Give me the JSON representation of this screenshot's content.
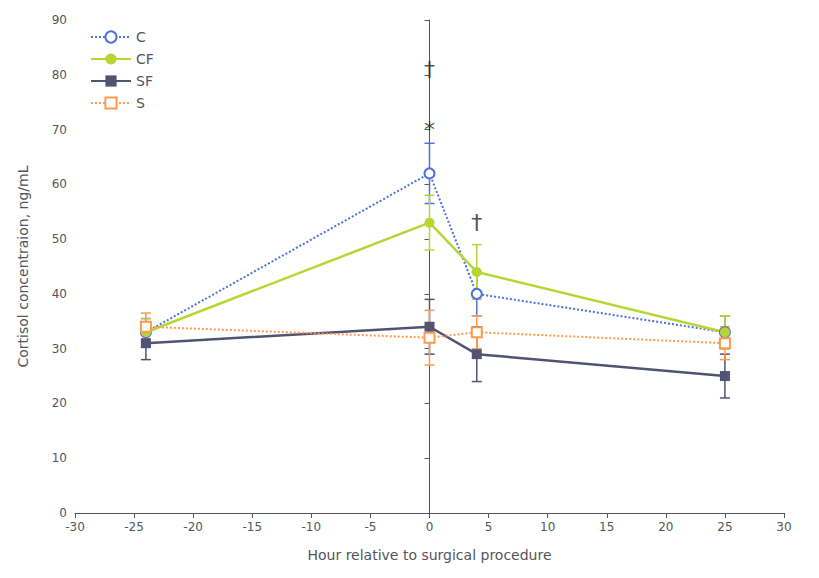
{
  "chart_data": {
    "type": "line",
    "xlabel": "Hour relative to surgical procedure",
    "ylabel": "Cortisol concentraion, ng/mL",
    "x": [
      -24,
      0,
      4,
      25
    ],
    "series": [
      {
        "name": "C",
        "values": [
          33,
          62,
          40,
          33
        ],
        "errors": [
          2.5,
          5.5,
          4,
          3
        ],
        "marker": "open_circle",
        "line_style": "dotted"
      },
      {
        "name": "CF",
        "values": [
          33,
          53,
          44,
          33
        ],
        "errors": [
          2.5,
          5,
          5,
          3
        ],
        "marker": "circle",
        "line_style": "solid"
      },
      {
        "name": "SF",
        "values": [
          31,
          34,
          29,
          25
        ],
        "errors": [
          3,
          5,
          5,
          4
        ],
        "marker": "square",
        "line_style": "solid"
      },
      {
        "name": "S",
        "values": [
          34,
          32,
          33,
          31
        ],
        "errors": [
          2.5,
          5,
          3,
          3
        ],
        "marker": "open_square",
        "line_style": "dotted"
      }
    ],
    "annotations": [
      {
        "text": "†",
        "x": 0,
        "y": 81
      },
      {
        "text": "*",
        "x": 0,
        "y": 70
      },
      {
        "text": "†",
        "x": 4,
        "y": 53
      }
    ],
    "xlim": [
      -30,
      30
    ],
    "ylim": [
      0,
      90
    ],
    "xticks": [
      -30,
      -25,
      -20,
      -15,
      -10,
      -5,
      0,
      5,
      10,
      15,
      20,
      25,
      30
    ],
    "yticks": [
      0,
      10,
      20,
      30,
      40,
      50,
      60,
      70,
      80,
      90
    ],
    "grid": false,
    "legend": "upper left"
  }
}
